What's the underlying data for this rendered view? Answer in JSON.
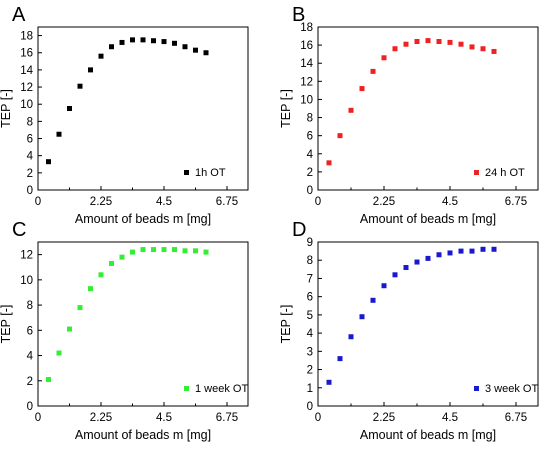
{
  "chart_data": [
    {
      "type": "scatter",
      "panel_label": "A",
      "xlabel": "Amount of beads m [mg]",
      "ylabel": "TEP [-]",
      "xlim": [
        0,
        7.5
      ],
      "ylim": [
        0,
        19
      ],
      "xticks": [
        "0",
        "2.25",
        "4.5",
        "6.75"
      ],
      "xtick_values": [
        0,
        2.25,
        4.5,
        6.75
      ],
      "yticks": [
        0,
        2,
        4,
        6,
        8,
        10,
        12,
        14,
        16,
        18
      ],
      "series": [
        {
          "name": "1h OT",
          "color": "#000000",
          "x": [
            0.375,
            0.75,
            1.125,
            1.5,
            1.875,
            2.25,
            2.625,
            3.0,
            3.375,
            3.75,
            4.125,
            4.5,
            4.875,
            5.25,
            5.625,
            6.0
          ],
          "y": [
            3.3,
            6.5,
            9.5,
            12.1,
            14.0,
            15.6,
            16.7,
            17.2,
            17.5,
            17.5,
            17.4,
            17.3,
            17.1,
            16.7,
            16.3,
            16.0
          ]
        }
      ],
      "legend_position": "bottom-right"
    },
    {
      "type": "scatter",
      "panel_label": "B",
      "xlabel": "Amount of beads m [mg]",
      "ylabel": "TEP [-]",
      "xlim": [
        0,
        7.5
      ],
      "ylim": [
        0,
        18
      ],
      "xticks": [
        "0",
        "2.25",
        "4.5",
        "6.75"
      ],
      "xtick_values": [
        0,
        2.25,
        4.5,
        6.75
      ],
      "yticks": [
        0,
        2,
        4,
        6,
        8,
        10,
        12,
        14,
        16,
        18
      ],
      "series": [
        {
          "name": "24 h OT",
          "color": "#ee2222",
          "x": [
            0.375,
            0.75,
            1.125,
            1.5,
            1.875,
            2.25,
            2.625,
            3.0,
            3.375,
            3.75,
            4.125,
            4.5,
            4.875,
            5.25,
            5.625,
            6.0
          ],
          "y": [
            3.0,
            6.0,
            8.8,
            11.2,
            13.1,
            14.6,
            15.6,
            16.1,
            16.4,
            16.5,
            16.4,
            16.3,
            16.1,
            15.8,
            15.6,
            15.3
          ]
        }
      ],
      "legend_position": "bottom-right"
    },
    {
      "type": "scatter",
      "panel_label": "C",
      "xlabel": "Amount of beads m [mg]",
      "ylabel": "TEP [-]",
      "xlim": [
        0,
        7.5
      ],
      "ylim": [
        0,
        13
      ],
      "xticks": [
        "0",
        "2.25",
        "4.5",
        "6.75"
      ],
      "xtick_values": [
        0,
        2.25,
        4.5,
        6.75
      ],
      "yticks": [
        0,
        2,
        4,
        6,
        8,
        10,
        12
      ],
      "series": [
        {
          "name": "1 week OT",
          "color": "#33ee33",
          "x": [
            0.375,
            0.75,
            1.125,
            1.5,
            1.875,
            2.25,
            2.625,
            3.0,
            3.375,
            3.75,
            4.125,
            4.5,
            4.875,
            5.25,
            5.625,
            6.0
          ],
          "y": [
            2.1,
            4.2,
            6.1,
            7.8,
            9.3,
            10.4,
            11.3,
            11.8,
            12.2,
            12.4,
            12.4,
            12.4,
            12.4,
            12.3,
            12.3,
            12.2
          ]
        }
      ],
      "legend_position": "bottom-right"
    },
    {
      "type": "scatter",
      "panel_label": "D",
      "xlabel": "Amount of beads m [mg]",
      "ylabel": "TEP [-]",
      "xlim": [
        0,
        7.5
      ],
      "ylim": [
        0,
        9
      ],
      "xticks": [
        "0",
        "2.25",
        "4.5",
        "6.75"
      ],
      "xtick_values": [
        0,
        2.25,
        4.5,
        6.75
      ],
      "yticks": [
        0,
        1,
        2,
        3,
        4,
        5,
        6,
        7,
        8,
        9
      ],
      "series": [
        {
          "name": "3 week OT",
          "color": "#1a1acc",
          "x": [
            0.375,
            0.75,
            1.125,
            1.5,
            1.875,
            2.25,
            2.625,
            3.0,
            3.375,
            3.75,
            4.125,
            4.5,
            4.875,
            5.25,
            5.625,
            6.0
          ],
          "y": [
            1.3,
            2.6,
            3.8,
            4.9,
            5.8,
            6.6,
            7.2,
            7.6,
            7.9,
            8.1,
            8.3,
            8.4,
            8.5,
            8.5,
            8.6,
            8.6
          ]
        }
      ],
      "legend_position": "bottom-right"
    }
  ]
}
